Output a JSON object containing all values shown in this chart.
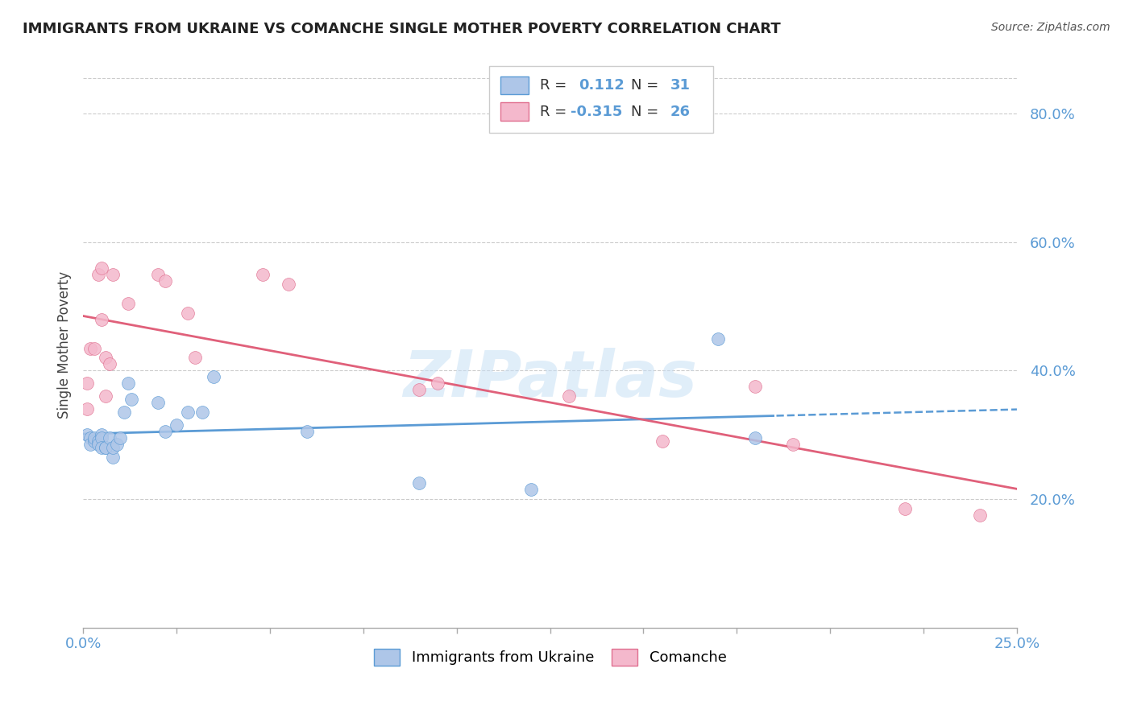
{
  "title": "IMMIGRANTS FROM UKRAINE VS COMANCHE SINGLE MOTHER POVERTY CORRELATION CHART",
  "source": "Source: ZipAtlas.com",
  "ylabel": "Single Mother Poverty",
  "ylim": [
    0.0,
    0.88
  ],
  "xlim": [
    0.0,
    0.25
  ],
  "yticks": [
    0.2,
    0.4,
    0.6,
    0.8
  ],
  "ytick_labels": [
    "20.0%",
    "40.0%",
    "60.0%",
    "80.0%"
  ],
  "ukraine_color": "#aec6e8",
  "ukraine_edge_color": "#5b9bd5",
  "comanche_color": "#f4b8cc",
  "comanche_edge_color": "#e07090",
  "ukraine_line_color": "#5b9bd5",
  "comanche_line_color": "#e0607a",
  "watermark": "ZIPatlas",
  "ukraine_x": [
    0.001,
    0.002,
    0.002,
    0.003,
    0.003,
    0.004,
    0.004,
    0.005,
    0.005,
    0.005,
    0.006,
    0.006,
    0.007,
    0.008,
    0.008,
    0.009,
    0.01,
    0.011,
    0.012,
    0.013,
    0.02,
    0.022,
    0.025,
    0.028,
    0.032,
    0.035,
    0.06,
    0.09,
    0.12,
    0.17,
    0.18
  ],
  "ukraine_y": [
    0.3,
    0.295,
    0.285,
    0.29,
    0.295,
    0.29,
    0.285,
    0.3,
    0.295,
    0.28,
    0.28,
    0.28,
    0.295,
    0.265,
    0.28,
    0.285,
    0.295,
    0.335,
    0.38,
    0.355,
    0.35,
    0.305,
    0.315,
    0.335,
    0.335,
    0.39,
    0.305,
    0.225,
    0.215,
    0.45,
    0.295
  ],
  "comanche_x": [
    0.001,
    0.001,
    0.002,
    0.003,
    0.004,
    0.005,
    0.005,
    0.006,
    0.006,
    0.007,
    0.008,
    0.012,
    0.02,
    0.022,
    0.028,
    0.03,
    0.048,
    0.055,
    0.09,
    0.095,
    0.13,
    0.155,
    0.18,
    0.19,
    0.22,
    0.24
  ],
  "comanche_y": [
    0.34,
    0.38,
    0.435,
    0.435,
    0.55,
    0.56,
    0.48,
    0.36,
    0.42,
    0.41,
    0.55,
    0.505,
    0.55,
    0.54,
    0.49,
    0.42,
    0.55,
    0.535,
    0.37,
    0.38,
    0.36,
    0.29,
    0.375,
    0.285,
    0.185,
    0.175
  ]
}
